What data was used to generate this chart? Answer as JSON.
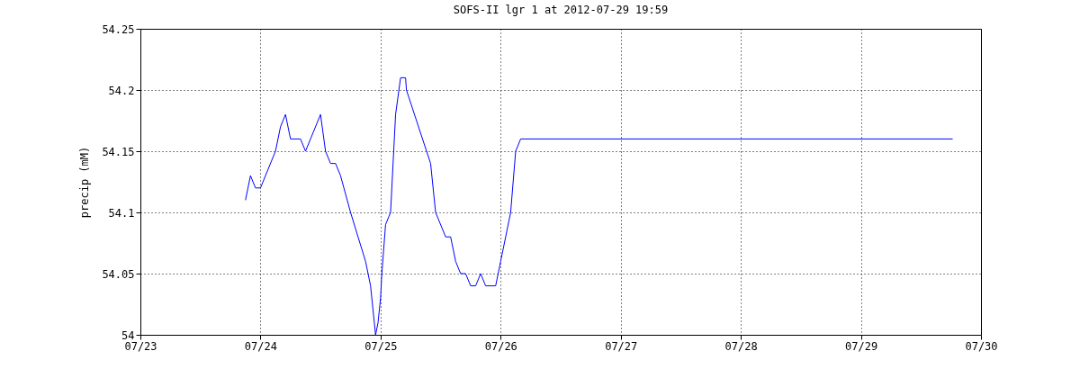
{
  "chart_data": {
    "type": "line",
    "title": "SOFS-II lgr 1 at 2012-07-29 19:59",
    "ylabel": "precip (mM)",
    "x": [
      "2012-07-23T21:00",
      "2012-07-23T22:00",
      "2012-07-23T23:00",
      "2012-07-24T00:00",
      "2012-07-24T03:00",
      "2012-07-24T04:00",
      "2012-07-24T05:00",
      "2012-07-24T06:00",
      "2012-07-24T08:00",
      "2012-07-24T09:00",
      "2012-07-24T12:00",
      "2012-07-24T13:00",
      "2012-07-24T14:00",
      "2012-07-24T15:00",
      "2012-07-24T16:00",
      "2012-07-24T18:00",
      "2012-07-24T21:00",
      "2012-07-24T22:00",
      "2012-07-24T23:00",
      "2012-07-24T23:30",
      "2012-07-25T00:00",
      "2012-07-25T00:15",
      "2012-07-25T01:00",
      "2012-07-25T02:00",
      "2012-07-25T03:00",
      "2012-07-25T04:00",
      "2012-07-25T05:00",
      "2012-07-25T05:10",
      "2012-07-25T10:00",
      "2012-07-25T11:00",
      "2012-07-25T13:00",
      "2012-07-25T14:00",
      "2012-07-25T15:00",
      "2012-07-25T16:00",
      "2012-07-25T17:00",
      "2012-07-25T18:00",
      "2012-07-25T19:00",
      "2012-07-25T20:00",
      "2012-07-25T21:00",
      "2012-07-25T23:00",
      "2012-07-26T00:00",
      "2012-07-26T02:00",
      "2012-07-26T03:00",
      "2012-07-26T04:00",
      "2012-07-29T18:20"
    ],
    "series": [
      {
        "color": "#0000ff",
        "values": [
          54.11,
          54.13,
          54.12,
          54.12,
          54.15,
          54.17,
          54.18,
          54.16,
          54.16,
          54.15,
          54.18,
          54.15,
          54.14,
          54.14,
          54.13,
          54.1,
          54.06,
          54.04,
          54.0,
          54.01,
          54.03,
          54.05,
          54.09,
          54.1,
          54.18,
          54.21,
          54.21,
          54.2,
          54.14,
          54.1,
          54.08,
          54.08,
          54.06,
          54.05,
          54.05,
          54.04,
          54.04,
          54.05,
          54.04,
          54.04,
          54.06,
          54.1,
          54.15,
          54.16,
          54.16
        ]
      }
    ],
    "xlim": [
      "2012-07-23",
      "2012-07-30"
    ],
    "xticks": [
      {
        "value": "2012-07-23",
        "label": "07/23"
      },
      {
        "value": "2012-07-24",
        "label": "07/24"
      },
      {
        "value": "2012-07-25",
        "label": "07/25"
      },
      {
        "value": "2012-07-26",
        "label": "07/26"
      },
      {
        "value": "2012-07-27",
        "label": "07/27"
      },
      {
        "value": "2012-07-28",
        "label": "07/28"
      },
      {
        "value": "2012-07-29",
        "label": "07/29"
      },
      {
        "value": "2012-07-30",
        "label": "07/30"
      }
    ],
    "ylim": [
      54,
      54.25
    ],
    "yticks": [
      54,
      54.05,
      54.1,
      54.15,
      54.2,
      54.25
    ],
    "grid": true,
    "line_style": "solid",
    "marker": "none"
  }
}
